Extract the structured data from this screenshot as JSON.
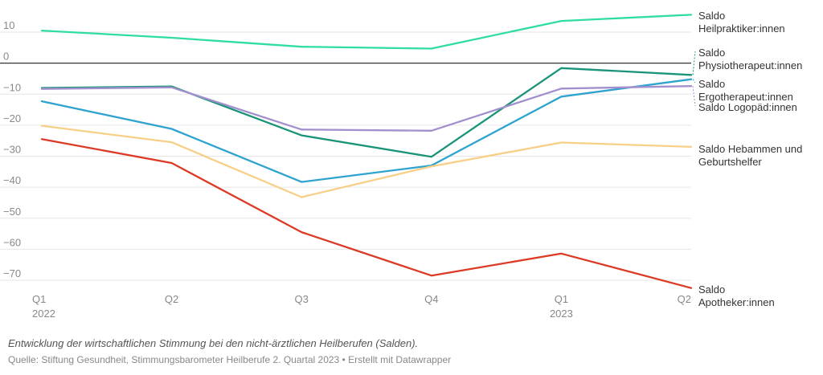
{
  "chart_data": {
    "type": "line",
    "categories": [
      "Q1 2022",
      "Q2 2022",
      "Q3 2022",
      "Q4 2022",
      "Q1 2023",
      "Q2 2023"
    ],
    "x_tick_labels": [
      {
        "quarter": "Q1",
        "year": "2022"
      },
      {
        "quarter": "Q2",
        "year": ""
      },
      {
        "quarter": "Q3",
        "year": ""
      },
      {
        "quarter": "Q4",
        "year": ""
      },
      {
        "quarter": "Q1",
        "year": "2023"
      },
      {
        "quarter": "Q2",
        "year": ""
      }
    ],
    "ylim": [
      -70,
      10
    ],
    "yticks": [
      10,
      0,
      -10,
      -20,
      -30,
      -40,
      -50,
      -60,
      -70
    ],
    "ytick_labels": [
      "10",
      "0",
      "−10",
      "−20",
      "−30",
      "−40",
      "−50",
      "−60",
      "−70"
    ],
    "grid": true,
    "series": [
      {
        "name": "Saldo Heilpraktiker:innen",
        "label_lines": [
          "Saldo",
          "Heilpraktiker:innen"
        ],
        "color": "#2fdca5",
        "values": [
          10.5,
          8.2,
          5.3,
          4.7,
          13.6,
          15.6
        ]
      },
      {
        "name": "Saldo Physiotherapeut:innen",
        "label_lines": [
          "Saldo",
          "Physiotherapeut:innen"
        ],
        "color": "#1a9479",
        "values": [
          -8.0,
          -7.5,
          -23.3,
          -30.2,
          -1.6,
          -3.8
        ]
      },
      {
        "name": "Saldo Ergotherapeut:innen",
        "label_lines": [
          "Saldo",
          "Ergotherapeut:innen"
        ],
        "color": "#2fa3cf",
        "values": [
          -12.3,
          -21.2,
          -38.3,
          -33.0,
          -10.8,
          -5.2
        ]
      },
      {
        "name": "Saldo Logopäd:innen",
        "label_lines": [
          "Saldo Logopäd:innen"
        ],
        "color": "#a28fcc",
        "values": [
          -8.3,
          -7.8,
          -21.4,
          -21.8,
          -8.2,
          -7.4
        ]
      },
      {
        "name": "Saldo Hebammen und Geburtshelfer",
        "label_lines": [
          "Saldo Hebammen und",
          "Geburtshelfer"
        ],
        "color": "#f7cf86",
        "values": [
          -20.2,
          -25.5,
          -43.2,
          -33.3,
          -25.6,
          -27.0
        ]
      },
      {
        "name": "Saldo Apotheker:innen",
        "label_lines": [
          "Saldo",
          "Apotheker:innen"
        ],
        "color": "#dc3a24",
        "values": [
          -24.5,
          -32.2,
          -54.5,
          -68.5,
          -61.4,
          -72.5
        ]
      }
    ]
  },
  "description": "Entwicklung der wirtschaftlichen Stimmung bei den nicht-ärztlichen Heilberufen (Salden).",
  "source": "Quelle: Stiftung Gesundheit, Stimmungsbarometer Heilberufe 2. Quartal 2023 • Erstellt mit Datawrapper"
}
